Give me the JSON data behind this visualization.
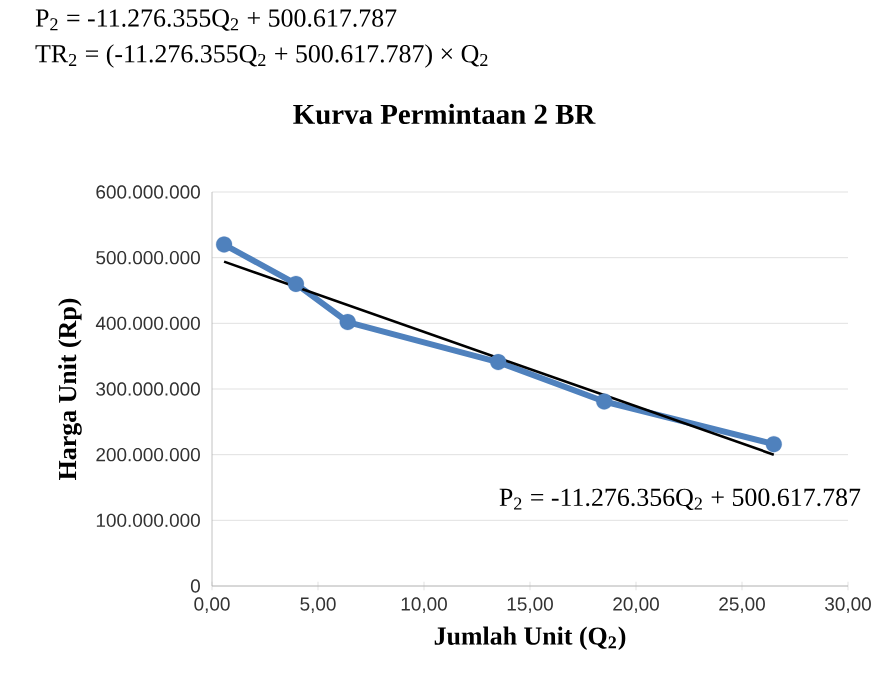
{
  "chart_data": {
    "type": "line",
    "title": "Kurva Permintaan 2 BR",
    "xlabel": "Jumlah Unit (Q$_{2}$)",
    "ylabel": "Harga Unit (Rp)",
    "annotations": [
      "P$_{2}$ = -11.276.355Q$_{2}$ + 500.617.787",
      "TR$_{2}$ = (-11.276.355Q$_{2}$ + 500.617.787) × Q$_{2}$",
      "P$_{2}$ = -11.276.356Q$_{2}$ + 500.617.787"
    ],
    "series": [
      {
        "x": [
          0.57,
          3.96,
          6.4,
          13.5,
          18.5,
          26.5
        ],
        "values": [
          520000000,
          460000000,
          402000000,
          341000000,
          281000000,
          216000000
        ],
        "color": "#4f81bd",
        "marker": "circle"
      },
      {
        "type": "line",
        "x": [
          0.57,
          26.5
        ],
        "values": [
          494000000,
          200000000
        ],
        "color": "#000000",
        "marker": "none"
      }
    ],
    "xlim": [
      0,
      30
    ],
    "ylim": [
      0,
      600000000
    ],
    "xticks": [
      {
        "value": 0,
        "label": "0,00"
      },
      {
        "value": 5,
        "label": "5,00"
      },
      {
        "value": 10,
        "label": "10,00"
      },
      {
        "value": 15,
        "label": "15,00"
      },
      {
        "value": 20,
        "label": "20,00"
      },
      {
        "value": 25,
        "label": "25,00"
      },
      {
        "value": 30,
        "label": "30,00"
      }
    ],
    "yticks": [
      0,
      {
        "value": 100000000,
        "label": "100.000.000"
      },
      {
        "value": 200000000,
        "label": "200.000.000"
      },
      {
        "value": 300000000,
        "label": "300.000.000"
      },
      {
        "value": 400000000,
        "label": "400.000.000"
      },
      {
        "value": 500000000,
        "label": "500.000.000"
      },
      {
        "value": 600000000,
        "label": "600.000.000"
      }
    ],
    "grid": "y"
  }
}
